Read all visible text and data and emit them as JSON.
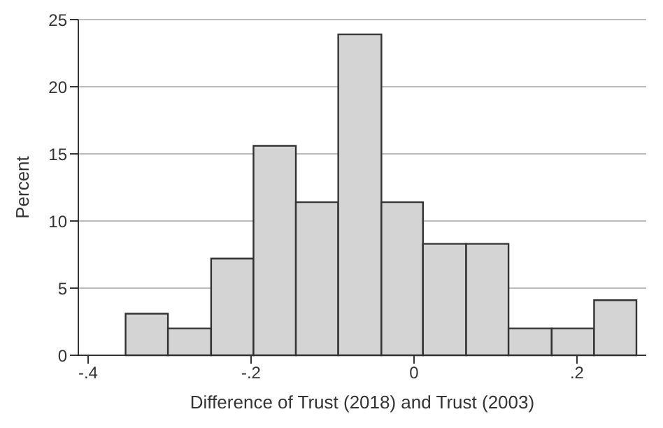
{
  "chart_data": {
    "type": "histogram",
    "xlabel": "Difference of Trust (2018) and Trust (2003)",
    "ylabel": "Percent",
    "bins": [
      -0.354,
      -0.302,
      -0.249,
      -0.197,
      -0.145,
      -0.093,
      -0.04,
      0.011,
      0.064,
      0.116,
      0.169,
      0.221,
      0.273
    ],
    "values": [
      3.1,
      2,
      7.2,
      15.6,
      11.4,
      23.9,
      11.4,
      8.3,
      8.3,
      2,
      2,
      4.1
    ],
    "color": "#d4d4d4",
    "xlim": [
      -0.412,
      0.285
    ],
    "xticks": [
      {
        "value": -0.4,
        "label": "-.4"
      },
      {
        "value": -0.2,
        "label": "-.2"
      },
      0,
      {
        "value": 0.2,
        "label": ".2"
      }
    ],
    "ylim": [
      0,
      25
    ],
    "yticks": [
      0,
      5,
      10,
      15,
      20,
      25
    ],
    "grid": "y"
  }
}
